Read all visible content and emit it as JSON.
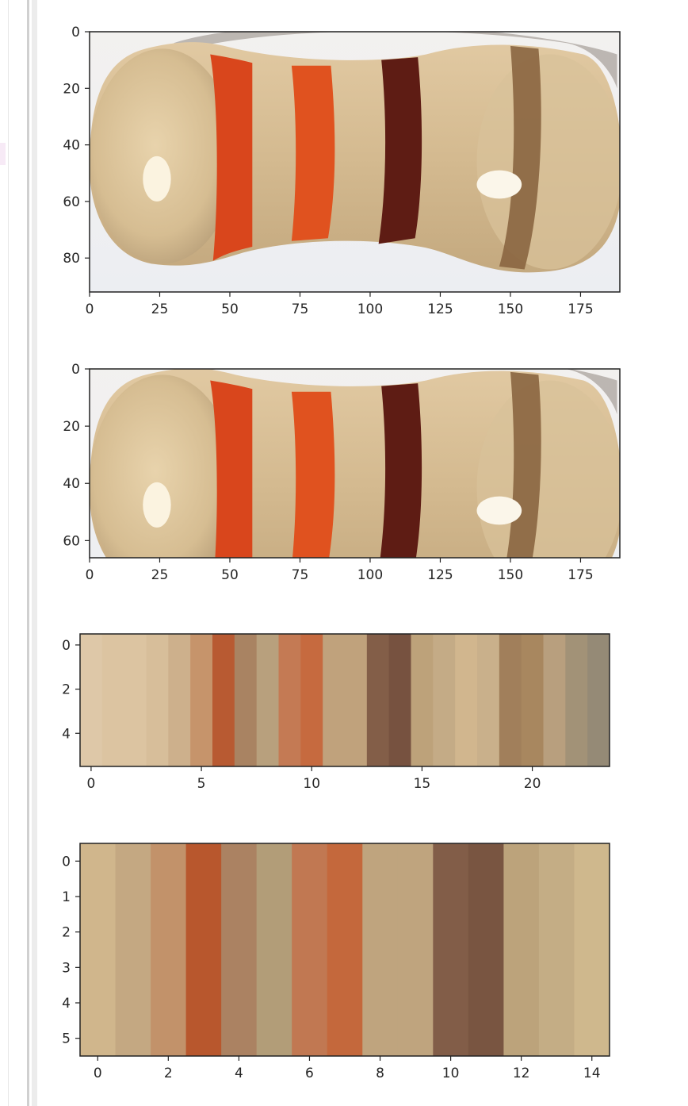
{
  "colors": {
    "page_bg": "#ffffff",
    "axis": "#222222",
    "tick_text": "#262626",
    "gutter_dark": "#c8c8c8",
    "gutter_light": "#e6e6e6",
    "side_marker": "#f7eaf6"
  },
  "chart_data": [
    {
      "type": "image",
      "description_key": "resistor-photo-full",
      "xlim": [
        0,
        189
      ],
      "ylim": [
        92,
        0
      ],
      "xticks": [
        "0",
        "25",
        "50",
        "75",
        "100",
        "125",
        "150",
        "175"
      ],
      "yticks": [
        "0",
        "20",
        "40",
        "60",
        "80"
      ]
    },
    {
      "type": "image",
      "description_key": "resistor-photo-cropped",
      "xlim": [
        0,
        189
      ],
      "ylim": [
        66,
        0
      ],
      "xticks": [
        "0",
        "25",
        "50",
        "75",
        "100",
        "125",
        "150",
        "175"
      ],
      "yticks": [
        "0",
        "20",
        "40",
        "60"
      ]
    },
    {
      "type": "heatmap",
      "xlim": [
        -0.5,
        23.5
      ],
      "ylim": [
        5.5,
        -0.5
      ],
      "xticks": [
        "0",
        "5",
        "10",
        "15",
        "20"
      ],
      "yticks": [
        "0",
        "2",
        "4"
      ],
      "columns": [
        "#dec8a8",
        "#dcc4a1",
        "#dcc4a1",
        "#d7be9a",
        "#cdb08c",
        "#c6946b",
        "#b85a32",
        "#a98362",
        "#b8a07d",
        "#c47a54",
        "#c66a3f",
        "#c0a27c",
        "#c0a27c",
        "#835e48",
        "#775240",
        "#bda27a",
        "#c4ab86",
        "#d1b68e",
        "#c9b08b",
        "#a17f5b",
        "#a8875f",
        "#b89f7e",
        "#a29277",
        "#958a76"
      ]
    },
    {
      "type": "heatmap",
      "xlim": [
        -0.5,
        14.5
      ],
      "ylim": [
        5.5,
        -0.5
      ],
      "xticks": [
        "0",
        "2",
        "4",
        "6",
        "8",
        "10",
        "12",
        "14"
      ],
      "yticks": [
        "0",
        "1",
        "2",
        "3",
        "4",
        "5"
      ],
      "columns": [
        "#d0b68c",
        "#c4a882",
        "#c2926a",
        "#b8572d",
        "#ab8262",
        "#b29d78",
        "#c17852",
        "#c4683c",
        "#bfa47e",
        "#bfa47e",
        "#825d48",
        "#795541",
        "#bca37b",
        "#c4ad85",
        "#cfb88d"
      ]
    }
  ]
}
